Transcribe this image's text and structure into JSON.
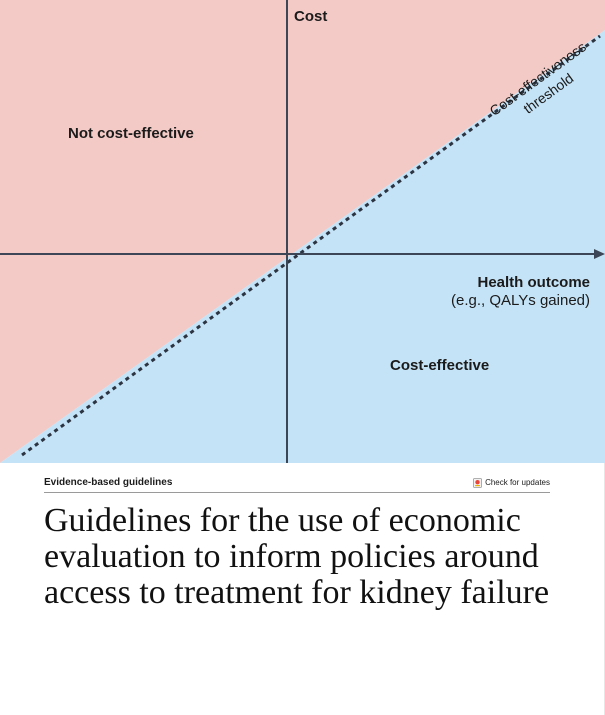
{
  "diagram": {
    "y_axis_label": "Cost",
    "x_axis_label": "Health outcome",
    "x_axis_sublabel": "(e.g., QALYs gained)",
    "region_upper_label": "Not cost-effective",
    "region_lower_label": "Cost-effective",
    "threshold_label_line1": "Cost-effectiveness",
    "threshold_label_line2": "threshold",
    "colors": {
      "not_cost_effective_fill": "#f4cac6",
      "cost_effective_fill": "#c5e3f6",
      "axis": "#3c4656",
      "threshold_dash": "#2c3442"
    }
  },
  "article": {
    "section_label": "Evidence-based guidelines",
    "updates_label": "Check for updates",
    "title_lines": [
      "Guidelines for the use of economic",
      "evaluation to inform policies around",
      "access to treatment for kidney failure"
    ]
  }
}
